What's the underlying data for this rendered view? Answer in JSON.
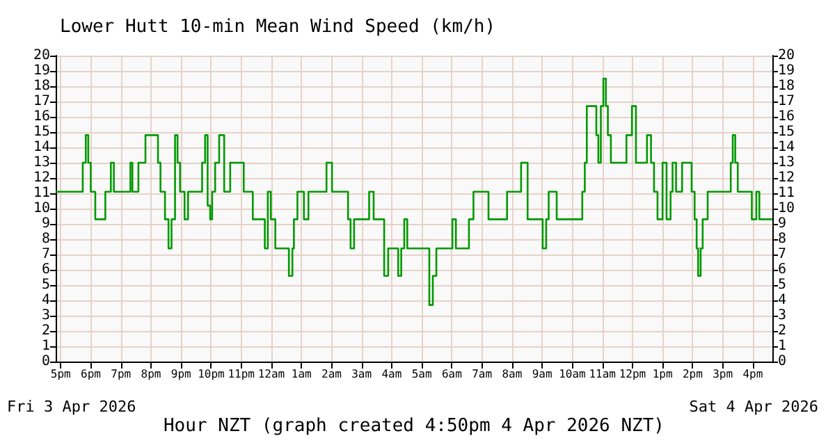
{
  "chart_data": {
    "type": "step",
    "title": "Lower Hutt 10-min Mean Wind Speed (km/h)",
    "xlabel": "Hour NZT (graph created 4:50pm 4 Apr 2026 NZT)",
    "annotations": [
      "Fri 3 Apr 2026",
      "Sat 4 Apr 2026"
    ],
    "series": [
      {
        "color": "#009900",
        "x": [
          "2026-04-03T16:50",
          "2026-04-03T17:38",
          "2026-04-03T17:44",
          "2026-04-03T17:50",
          "2026-04-03T17:55",
          "2026-04-03T18:00",
          "2026-04-03T18:09",
          "2026-04-03T18:20",
          "2026-04-03T18:29",
          "2026-04-03T18:40",
          "2026-04-03T18:46",
          "2026-04-03T19:09",
          "2026-04-03T19:19",
          "2026-04-03T19:23",
          "2026-04-03T19:29",
          "2026-04-03T19:35",
          "2026-04-03T19:49",
          "2026-04-03T20:10",
          "2026-04-03T20:14",
          "2026-04-03T20:19",
          "2026-04-03T20:28",
          "2026-04-03T20:35",
          "2026-04-03T20:41",
          "2026-04-03T20:48",
          "2026-04-03T20:53",
          "2026-04-03T20:58",
          "2026-04-03T21:07",
          "2026-04-03T21:14",
          "2026-04-03T21:37",
          "2026-04-03T21:42",
          "2026-04-03T21:48",
          "2026-04-03T21:53",
          "2026-04-03T21:58",
          "2026-04-03T22:02",
          "2026-04-03T22:08",
          "2026-04-03T22:16",
          "2026-04-03T22:21",
          "2026-04-03T22:26",
          "2026-04-03T22:33",
          "2026-04-03T22:38",
          "2026-04-03T22:58",
          "2026-04-03T23:05",
          "2026-04-03T23:16",
          "2026-04-03T23:23",
          "2026-04-03T23:37",
          "2026-04-03T23:47",
          "2026-04-03T23:53",
          "2026-04-03T23:59",
          "2026-04-04T00:08",
          "2026-04-04T00:26",
          "2026-04-04T00:35",
          "2026-04-04T00:42",
          "2026-04-04T00:45",
          "2026-04-04T00:52",
          "2026-04-04T01:01",
          "2026-04-04T01:05",
          "2026-04-04T01:14",
          "2026-04-04T01:38",
          "2026-04-04T01:50",
          "2026-04-04T02:01",
          "2026-04-04T02:26",
          "2026-04-04T02:33",
          "2026-04-04T02:38",
          "2026-04-04T02:45",
          "2026-04-04T03:05",
          "2026-04-04T03:15",
          "2026-04-04T03:24",
          "2026-04-04T03:38",
          "2026-04-04T03:45",
          "2026-04-04T03:53",
          "2026-04-04T04:07",
          "2026-04-04T04:13",
          "2026-04-04T04:19",
          "2026-04-04T04:25",
          "2026-04-04T04:31",
          "2026-04-04T05:03",
          "2026-04-04T05:15",
          "2026-04-04T05:22",
          "2026-04-04T05:29",
          "2026-04-04T05:54",
          "2026-04-04T06:01",
          "2026-04-04T06:08",
          "2026-04-04T06:24",
          "2026-04-04T06:34",
          "2026-04-04T06:43",
          "2026-04-04T07:04",
          "2026-04-04T07:13",
          "2026-04-04T07:41",
          "2026-04-04T07:50",
          "2026-04-04T08:11",
          "2026-04-04T08:18",
          "2026-04-04T08:25",
          "2026-04-04T08:31",
          "2026-04-04T08:52",
          "2026-04-04T09:01",
          "2026-04-04T09:08",
          "2026-04-04T09:13",
          "2026-04-04T09:20",
          "2026-04-04T09:29",
          "2026-04-04T10:11",
          "2026-04-04T10:20",
          "2026-04-04T10:25",
          "2026-04-04T10:29",
          "2026-04-04T10:41",
          "2026-04-04T10:48",
          "2026-04-04T10:52",
          "2026-04-04T10:57",
          "2026-04-04T11:02",
          "2026-04-04T11:07",
          "2026-04-04T11:11",
          "2026-04-04T11:17",
          "2026-04-04T11:41",
          "2026-04-04T11:48",
          "2026-04-04T11:59",
          "2026-04-04T12:07",
          "2026-04-04T12:22",
          "2026-04-04T12:29",
          "2026-04-04T12:37",
          "2026-04-04T12:43",
          "2026-04-04T12:50",
          "2026-04-04T13:00",
          "2026-04-04T13:08",
          "2026-04-04T13:16",
          "2026-04-04T13:20",
          "2026-04-04T13:27",
          "2026-04-04T13:32",
          "2026-04-04T13:39",
          "2026-04-04T13:48",
          "2026-04-04T13:58",
          "2026-04-04T14:04",
          "2026-04-04T14:08",
          "2026-04-04T14:11",
          "2026-04-04T14:16",
          "2026-04-04T14:20",
          "2026-04-04T14:30",
          "2026-04-04T15:08",
          "2026-04-04T15:16",
          "2026-04-04T15:20",
          "2026-04-04T15:25",
          "2026-04-04T15:30",
          "2026-04-04T15:51",
          "2026-04-04T15:58",
          "2026-04-04T16:07",
          "2026-04-04T16:13",
          "2026-04-04T16:39"
        ],
        "values": [
          11.1,
          11.1,
          13,
          14.8,
          13,
          11.1,
          9.3,
          9.3,
          11.1,
          13,
          11.1,
          11.1,
          13,
          11.1,
          11.1,
          13,
          14.8,
          14.8,
          13,
          11.1,
          9.3,
          7.4,
          9.3,
          14.8,
          13,
          11.1,
          9.3,
          11.1,
          11.1,
          13,
          14.8,
          10.2,
          9.3,
          11.1,
          13,
          14.8,
          14.8,
          11.1,
          11.1,
          13,
          13,
          11.1,
          11.1,
          9.3,
          9.3,
          7.4,
          11.1,
          9.3,
          7.4,
          7.4,
          5.6,
          7.4,
          9.3,
          11.1,
          11.1,
          9.3,
          11.1,
          11.1,
          13,
          11.1,
          11.1,
          9.3,
          7.4,
          9.3,
          9.3,
          11.1,
          9.3,
          9.3,
          5.6,
          7.4,
          7.4,
          5.6,
          7.4,
          9.3,
          7.4,
          7.4,
          3.7,
          5.6,
          7.4,
          7.4,
          9.3,
          7.4,
          7.4,
          9.3,
          11.1,
          11.1,
          9.3,
          9.3,
          11.1,
          11.1,
          13,
          13,
          9.3,
          9.3,
          7.4,
          9.3,
          11.1,
          11.1,
          9.3,
          9.3,
          11.1,
          13,
          16.7,
          16.7,
          14.8,
          13,
          16.7,
          18.5,
          16.7,
          14.8,
          13,
          13,
          14.8,
          16.7,
          13,
          13,
          14.8,
          13,
          11.1,
          9.3,
          13,
          9.3,
          11.1,
          13,
          11.1,
          11.1,
          13,
          13,
          11.1,
          9.3,
          7.4,
          5.6,
          7.4,
          9.3,
          11.1,
          11.1,
          13,
          14.8,
          13,
          11.1,
          11.1,
          9.3,
          11.1,
          9.3,
          9.3
        ]
      }
    ],
    "xlim": [
      "2026-04-03T16:50",
      "2026-04-04T16:39"
    ],
    "xticks": [
      {
        "value": "2026-04-03T17:00",
        "label": "5pm"
      },
      {
        "value": "2026-04-03T18:00",
        "label": "6pm"
      },
      {
        "value": "2026-04-03T19:00",
        "label": "7pm"
      },
      {
        "value": "2026-04-03T20:00",
        "label": "8pm"
      },
      {
        "value": "2026-04-03T21:00",
        "label": "9pm"
      },
      {
        "value": "2026-04-03T22:00",
        "label": "10pm"
      },
      {
        "value": "2026-04-03T23:00",
        "label": "11pm"
      },
      {
        "value": "2026-04-04T00:00",
        "label": "12am"
      },
      {
        "value": "2026-04-04T01:00",
        "label": "1am"
      },
      {
        "value": "2026-04-04T02:00",
        "label": "2am"
      },
      {
        "value": "2026-04-04T03:00",
        "label": "3am"
      },
      {
        "value": "2026-04-04T04:00",
        "label": "4am"
      },
      {
        "value": "2026-04-04T05:00",
        "label": "5am"
      },
      {
        "value": "2026-04-04T06:00",
        "label": "6am"
      },
      {
        "value": "2026-04-04T07:00",
        "label": "7am"
      },
      {
        "value": "2026-04-04T08:00",
        "label": "8am"
      },
      {
        "value": "2026-04-04T09:00",
        "label": "9am"
      },
      {
        "value": "2026-04-04T10:00",
        "label": "10am"
      },
      {
        "value": "2026-04-04T11:00",
        "label": "11am"
      },
      {
        "value": "2026-04-04T12:00",
        "label": "12pm"
      },
      {
        "value": "2026-04-04T13:00",
        "label": "1pm"
      },
      {
        "value": "2026-04-04T14:00",
        "label": "2pm"
      },
      {
        "value": "2026-04-04T15:00",
        "label": "3pm"
      },
      {
        "value": "2026-04-04T16:00",
        "label": "4pm"
      }
    ],
    "ylim": [
      0,
      20
    ],
    "yticks": [
      0,
      1,
      2,
      3,
      4,
      5,
      6,
      7,
      8,
      9,
      10,
      11,
      12,
      13,
      14,
      15,
      16,
      17,
      18,
      19,
      20
    ],
    "y2lim": [
      0,
      20
    ],
    "y2ticks": [
      0,
      1,
      2,
      3,
      4,
      5,
      6,
      7,
      8,
      9,
      10,
      11,
      12,
      13,
      14,
      15,
      16,
      17,
      18,
      19,
      20
    ],
    "grid": true
  }
}
